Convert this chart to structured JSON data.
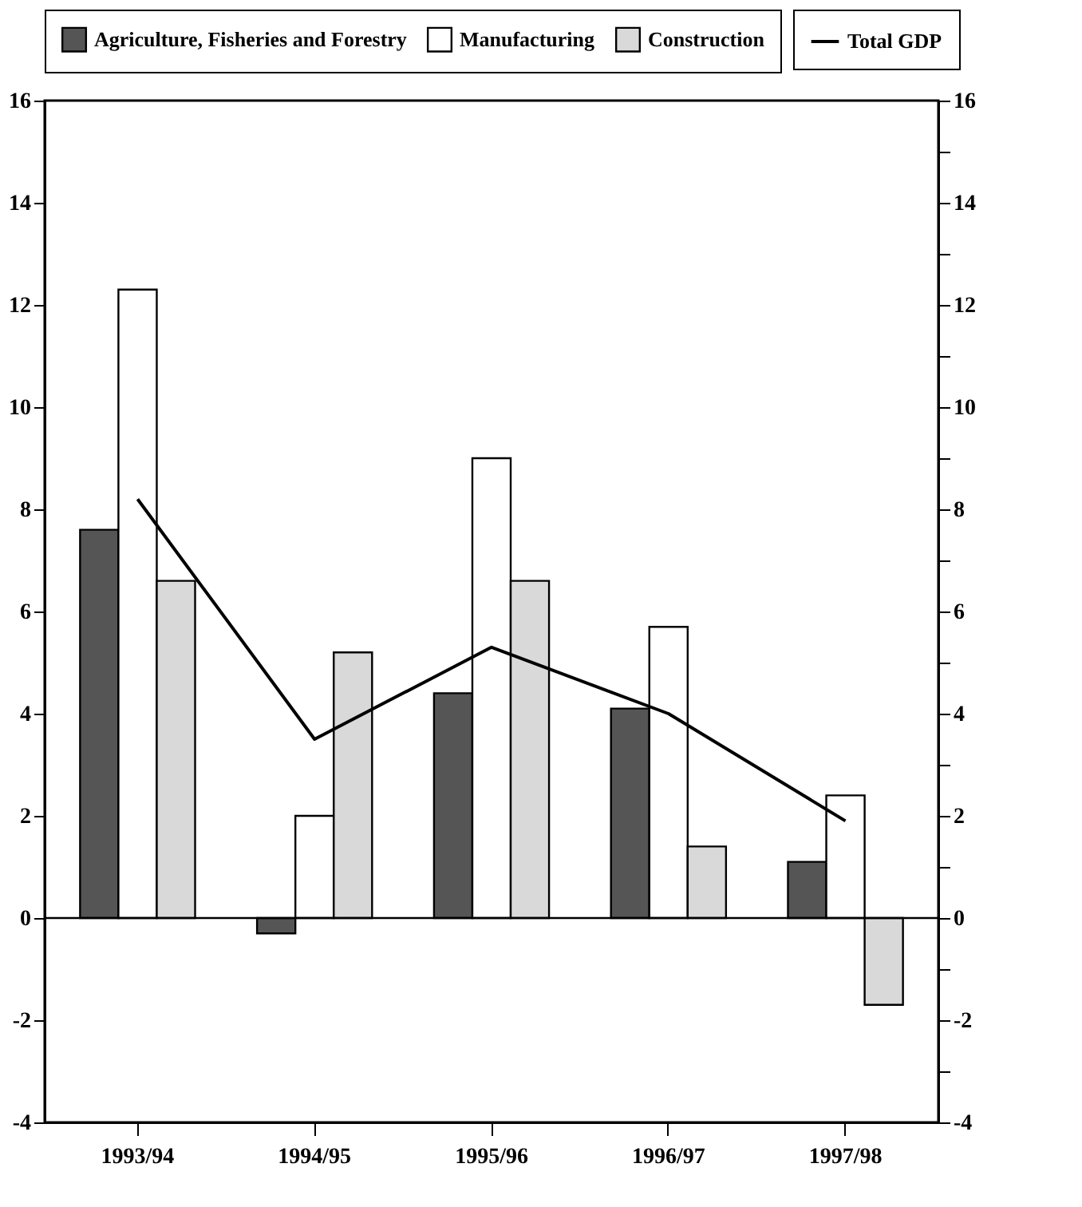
{
  "chart_data": {
    "type": "bar",
    "categories": [
      "1993/94",
      "1994/95",
      "1995/96",
      "1996/97",
      "1997/98"
    ],
    "series": [
      {
        "name": "Total GDP",
        "type": "line",
        "color": "#000000",
        "values": [
          8.2,
          3.5,
          5.3,
          4.0,
          1.9
        ]
      },
      {
        "name": "Agriculture, Fisheries and Forestry",
        "color": "#555555",
        "values": [
          7.6,
          -0.3,
          4.4,
          4.1,
          1.1
        ]
      },
      {
        "name": "Manufacturing",
        "color": "#ffffff",
        "values": [
          12.3,
          2.0,
          9.0,
          5.7,
          2.4
        ]
      },
      {
        "name": "Construction",
        "color": "#d9d9d9",
        "values": [
          6.6,
          5.2,
          6.6,
          1.4,
          -1.7
        ]
      }
    ],
    "ylim": [
      -4,
      16
    ],
    "yticks": [
      -4,
      {
        "value": -3,
        "label": null
      },
      -2,
      {
        "value": -1,
        "label": null
      },
      0,
      {
        "value": 1,
        "label": null
      },
      2,
      {
        "value": 3,
        "label": null
      },
      4,
      {
        "value": 5,
        "label": null
      },
      6,
      {
        "value": 7,
        "label": null
      },
      8,
      {
        "value": 9,
        "label": null
      },
      10,
      {
        "value": 11,
        "label": null
      },
      12,
      {
        "value": 13,
        "label": null
      },
      14,
      {
        "value": 15,
        "label": null
      },
      16
    ],
    "y2lim": [
      -4,
      16
    ],
    "y2ticks": [
      -4,
      {
        "value": -3,
        "label": null
      },
      -2,
      {
        "value": -1,
        "label": null
      },
      0,
      {
        "value": 1,
        "label": null
      },
      2,
      {
        "value": 3,
        "label": null
      },
      4,
      {
        "value": 5,
        "label": null
      },
      6,
      {
        "value": 7,
        "label": null
      },
      8,
      {
        "value": 9,
        "label": null
      },
      10,
      {
        "value": 11,
        "label": null
      },
      12,
      {
        "value": 13,
        "label": null
      },
      14,
      {
        "value": 15,
        "label": null
      },
      16
    ],
    "ref_lines": [
      {
        "axis": "y",
        "value": 0,
        "color": "#000000"
      }
    ],
    "legend": "top",
    "grid": false
  }
}
